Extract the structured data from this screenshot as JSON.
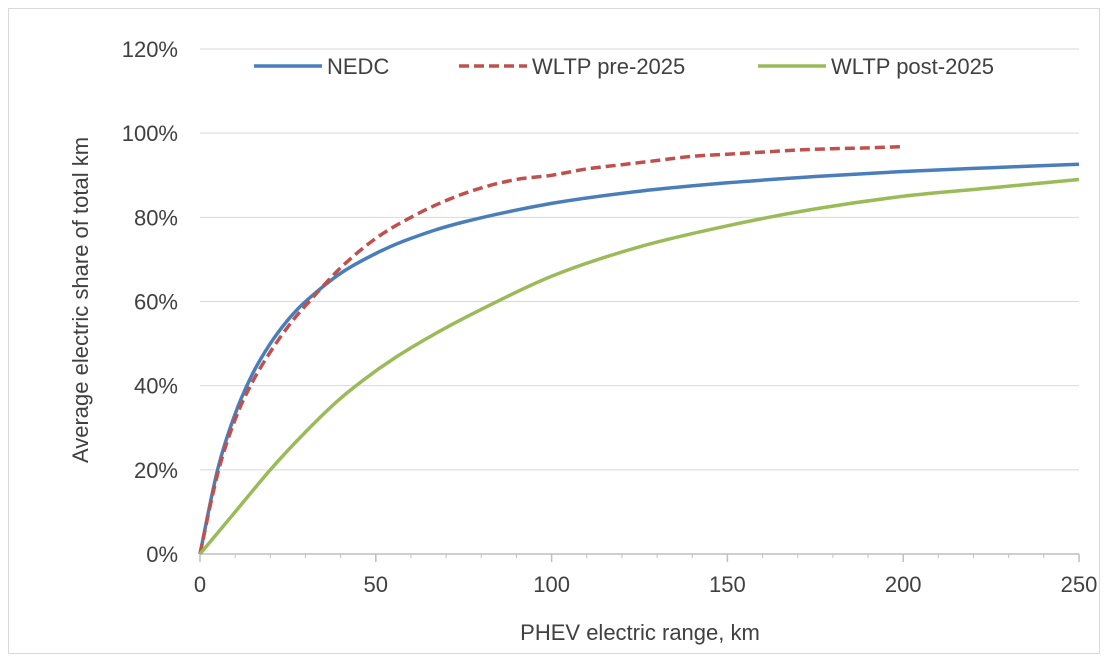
{
  "chart_data": {
    "type": "line",
    "xlabel": "PHEV electric range, km",
    "ylabel": "Average electric share of total km",
    "xlim": [
      0,
      250
    ],
    "ylim": [
      0,
      1.2
    ],
    "x_ticks": [
      "0",
      "50",
      "100",
      "150",
      "200",
      "250"
    ],
    "y_ticks": [
      "0%",
      "20%",
      "40%",
      "60%",
      "80%",
      "100%",
      "120%"
    ],
    "grid": "horizontal",
    "legend_position": "top",
    "series": [
      {
        "name": "NEDC",
        "color": "#4a7ebb",
        "style": "solid",
        "x": [
          0,
          5,
          10,
          15,
          20,
          25,
          30,
          40,
          50,
          60,
          75,
          100,
          125,
          150,
          175,
          200,
          225,
          250
        ],
        "y": [
          0,
          0.2,
          0.333,
          0.429,
          0.5,
          0.556,
          0.6,
          0.667,
          0.714,
          0.75,
          0.789,
          0.833,
          0.862,
          0.882,
          0.897,
          0.909,
          0.918,
          0.926
        ]
      },
      {
        "name": "WLTP pre-2025",
        "color": "#c0504d",
        "style": "dashed",
        "x": [
          0,
          5,
          10,
          15,
          20,
          25,
          30,
          40,
          50,
          60,
          70,
          80,
          90,
          100,
          110,
          120,
          130,
          140,
          150,
          160,
          170,
          180,
          190,
          200
        ],
        "y": [
          0,
          0.19,
          0.32,
          0.41,
          0.48,
          0.54,
          0.59,
          0.68,
          0.75,
          0.8,
          0.84,
          0.87,
          0.89,
          0.9,
          0.915,
          0.925,
          0.935,
          0.945,
          0.95,
          0.955,
          0.96,
          0.963,
          0.965,
          0.968
        ]
      },
      {
        "name": "WLTP post-2025",
        "color": "#9bbb59",
        "style": "solid",
        "x": [
          0,
          10,
          20,
          30,
          40,
          50,
          60,
          75,
          100,
          125,
          150,
          175,
          200,
          225,
          250
        ],
        "y": [
          0,
          0.1,
          0.2,
          0.29,
          0.37,
          0.435,
          0.49,
          0.56,
          0.66,
          0.73,
          0.78,
          0.82,
          0.85,
          0.87,
          0.89
        ]
      }
    ]
  }
}
